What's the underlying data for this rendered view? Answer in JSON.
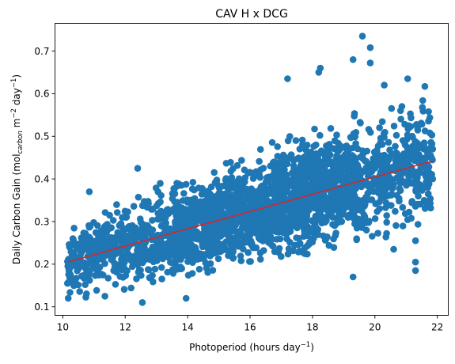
{
  "chart_data": {
    "type": "scatter",
    "title": "CAV H x DCG",
    "xlabel": {
      "pre": "Photoperiod (hours day",
      "sup": "−1",
      "post": ")"
    },
    "ylabel": {
      "pre": "Daily Carbon Gain (mol",
      "sub": "carbon",
      "mid": " m",
      "sup1": "−2",
      "mid2": " day",
      "sup2": "−1",
      "post": ")"
    },
    "xlim": [
      9.75,
      22.35
    ],
    "ylim": [
      0.08,
      0.765
    ],
    "xticks": [
      10,
      12,
      14,
      16,
      18,
      20,
      22
    ],
    "yticks": [
      0.1,
      0.2,
      0.3,
      0.4,
      0.5,
      0.6,
      0.7
    ],
    "grid": false,
    "scatter_color": "#1f77b4",
    "fit_color": "#d62728",
    "series": [
      {
        "kind": "scatter",
        "x_range": [
          10.15,
          21.85
        ],
        "trend_center_x": 10.15,
        "trend_center_y": 0.205,
        "trend_slope": 0.0203,
        "band_half_width_start": 0.075,
        "band_half_width_end": 0.13,
        "extreme_points": [
          [
            19.6,
            0.735
          ],
          [
            19.85,
            0.708
          ],
          [
            19.85,
            0.672
          ],
          [
            19.3,
            0.68
          ],
          [
            18.25,
            0.66
          ],
          [
            18.2,
            0.65
          ],
          [
            17.2,
            0.635
          ],
          [
            21.05,
            0.635
          ],
          [
            21.6,
            0.617
          ],
          [
            20.3,
            0.62
          ],
          [
            12.4,
            0.425
          ],
          [
            10.85,
            0.37
          ],
          [
            12.55,
            0.11
          ],
          [
            13.95,
            0.12
          ],
          [
            19.3,
            0.17
          ],
          [
            11.35,
            0.125
          ],
          [
            21.3,
            0.185
          ],
          [
            21.3,
            0.205
          ],
          [
            20.6,
            0.235
          ],
          [
            21.3,
            0.255
          ],
          [
            10.15,
            0.155
          ],
          [
            10.3,
            0.245
          ],
          [
            21.85,
            0.4
          ],
          [
            21.85,
            0.47
          ]
        ]
      },
      {
        "kind": "line",
        "name": "",
        "x": [
          10.15,
          21.85
        ],
        "y": [
          0.205,
          0.442
        ]
      }
    ]
  }
}
